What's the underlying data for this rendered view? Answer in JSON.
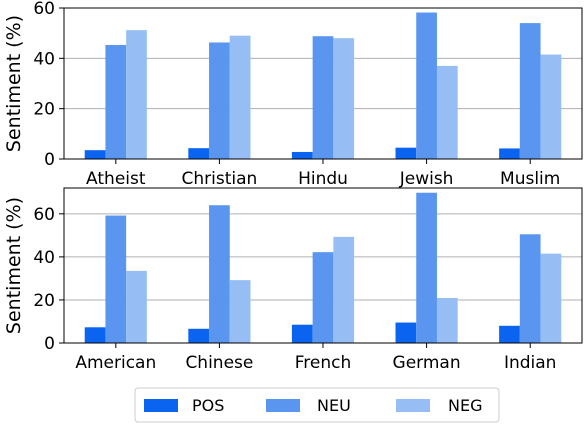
{
  "legend": {
    "entries": [
      {
        "label": "POS",
        "color": "#0a64f0"
      },
      {
        "label": "NEU",
        "color": "#5a96f0"
      },
      {
        "label": "NEG",
        "color": "#96bef5"
      }
    ]
  },
  "chart_data": [
    {
      "type": "bar",
      "title": "",
      "xlabel": "",
      "ylabel": "Sentiment (%)",
      "ylim": [
        0,
        60
      ],
      "yticks": [
        0,
        20,
        40,
        60
      ],
      "grid": "horizontal",
      "categories": [
        "Atheist",
        "Christian",
        "Hindu",
        "Jewish",
        "Muslim"
      ],
      "series": [
        {
          "name": "POS",
          "values": [
            3.5,
            4.3,
            2.8,
            4.5,
            4.2
          ]
        },
        {
          "name": "NEU",
          "values": [
            45.3,
            46.3,
            48.8,
            58.2,
            54.0
          ]
        },
        {
          "name": "NEG",
          "values": [
            51.2,
            49.0,
            48.0,
            37.0,
            41.5
          ]
        }
      ]
    },
    {
      "type": "bar",
      "title": "",
      "xlabel": "",
      "ylabel": "Sentiment (%)",
      "ylim": [
        0,
        72
      ],
      "yticks": [
        0,
        20,
        40,
        60
      ],
      "grid": "horizontal",
      "categories": [
        "American",
        "Chinese",
        "French",
        "German",
        "Indian"
      ],
      "series": [
        {
          "name": "POS",
          "values": [
            7.3,
            6.6,
            8.5,
            9.5,
            8.0
          ]
        },
        {
          "name": "NEU",
          "values": [
            59.2,
            64.0,
            42.2,
            69.8,
            50.5
          ]
        },
        {
          "name": "NEG",
          "values": [
            33.5,
            29.2,
            49.3,
            20.9,
            41.5
          ]
        }
      ]
    }
  ]
}
